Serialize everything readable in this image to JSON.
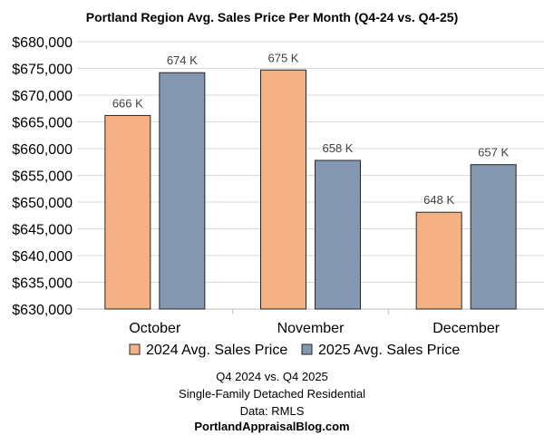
{
  "chart_data": {
    "type": "bar",
    "title": "Portland Region Avg. Sales Price Per Month (Q4-24 vs. Q4-25)",
    "categories": [
      "October",
      "November",
      "December"
    ],
    "series": [
      {
        "name": "2024 Avg. Sales Price",
        "color": "#F4B183",
        "values": [
          666200,
          674700,
          648100
        ],
        "labels": [
          "666 K",
          "675 K",
          "648 K"
        ]
      },
      {
        "name": "2025 Avg. Sales Price",
        "color": "#8497B0",
        "values": [
          674200,
          657800,
          657000
        ],
        "labels": [
          "674 K",
          "658 K",
          "657 K"
        ]
      }
    ],
    "ylim": [
      630000,
      680000
    ],
    "yticks": [
      "$630,000",
      "$635,000",
      "$640,000",
      "$645,000",
      "$650,000",
      "$655,000",
      "$660,000",
      "$665,000",
      "$670,000",
      "$675,000",
      "$680,000"
    ],
    "grid": true,
    "legend": "bottom"
  },
  "footer": {
    "line1": "Q4 2024 vs. Q4 2025",
    "line2": "Single-Family Detached Residential",
    "line3": "Data: RMLS",
    "line4": "PortlandAppraisalBlog.com"
  }
}
